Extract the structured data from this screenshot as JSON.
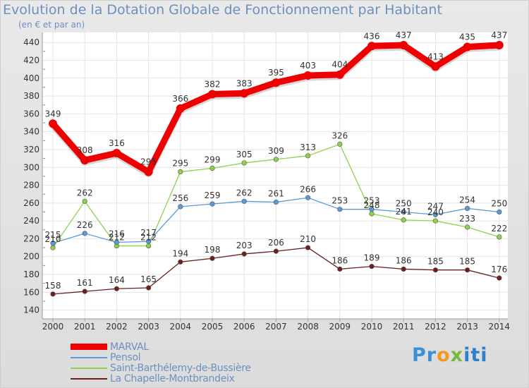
{
  "title": "Evolution de la Dotation Globale de Fonctionnement par Habitant",
  "subtitle": "(en € et par an)",
  "logo": {
    "text": "Proxiti",
    "part1": "Pr",
    "part2": "o",
    "part3": "x",
    "part4": "iti"
  },
  "chart_data": {
    "type": "line",
    "title": "Evolution de la Dotation Globale de Fonctionnement par Habitant",
    "ylabel": "(en € et par an)",
    "xlabel": "",
    "ylim": [
      140,
      440
    ],
    "yticks": [
      140,
      160,
      180,
      200,
      220,
      240,
      260,
      280,
      300,
      320,
      340,
      360,
      380,
      400,
      420,
      440
    ],
    "x": [
      "2000",
      "2001",
      "2002",
      "2003",
      "2004",
      "2005",
      "2006",
      "2007",
      "2008",
      "2009",
      "2010",
      "2011",
      "2012",
      "2013",
      "2014"
    ],
    "legend_position": "bottom-left",
    "series": [
      {
        "name": "MARVAL",
        "color": "#ee0000",
        "values": [
          349,
          308,
          316,
          295,
          366,
          382,
          383,
          395,
          403,
          404,
          436,
          437,
          413,
          435,
          437
        ]
      },
      {
        "name": "Pensol",
        "color": "#5b9bd5",
        "values": [
          215,
          226,
          216,
          217,
          256,
          259,
          262,
          261,
          266,
          253,
          253,
          250,
          247,
          254,
          250
        ]
      },
      {
        "name": "Saint-Barthélemy-de-Bussière",
        "color": "#8ed14b",
        "values": [
          210,
          262,
          212,
          212,
          295,
          299,
          305,
          309,
          313,
          326,
          248,
          241,
          240,
          233,
          222
        ]
      },
      {
        "name": "La Chapelle-Montbrandeix",
        "color": "#6b1f1f",
        "values": [
          158,
          161,
          164,
          165,
          194,
          198,
          203,
          206,
          210,
          186,
          189,
          186,
          185,
          185,
          176
        ]
      }
    ]
  }
}
